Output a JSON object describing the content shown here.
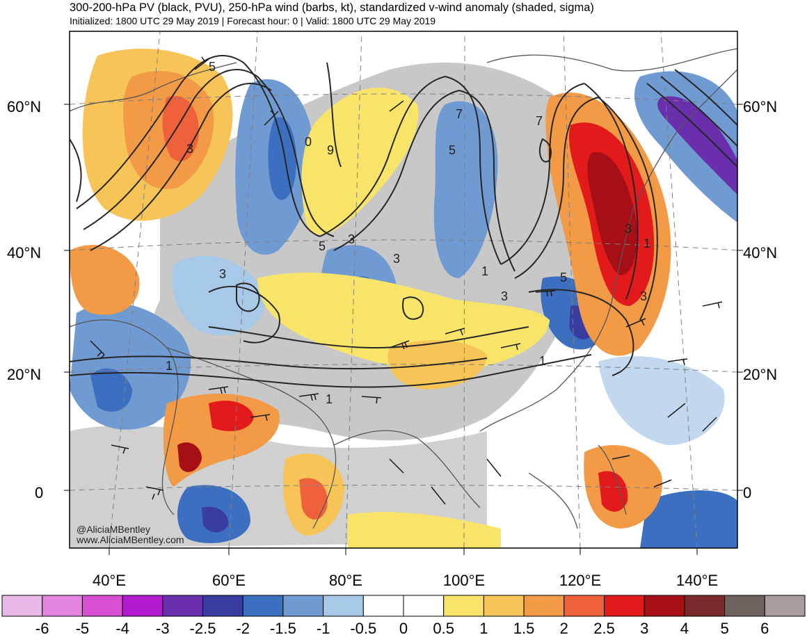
{
  "header": {
    "title": "300-200-hPa PV (black, PVU), 250-hPa wind (barbs, kt), standardized v-wind anomaly (shaded, sigma)",
    "subtitle": "Initialized: 1800 UTC 29 May 2019 | Forecast hour: 0 | Valid: 1800 UTC 29 May 2019"
  },
  "map": {
    "lat_labels": [
      "60°N",
      "40°N",
      "20°N",
      "0"
    ],
    "lon_labels": [
      "40°E",
      "60°E",
      "80°E",
      "100°E",
      "120°E",
      "140°E"
    ],
    "contour_labels": [
      "5",
      "3",
      "0",
      "9",
      "3",
      "5",
      "3",
      "3",
      "7",
      "5",
      "7",
      "3",
      "3",
      "5",
      "1",
      "3",
      "1",
      "1",
      "1",
      "1"
    ],
    "credit": [
      "@AliciaMBentley",
      "www.AliciaMBentley.com"
    ]
  },
  "colorbar": {
    "ticks": [
      "-6",
      "-5",
      "-4",
      "-3",
      "-2.5",
      "-2",
      "-1.5",
      "-1",
      "-0.5",
      "0",
      "0.5",
      "1",
      "1.5",
      "2",
      "2.5",
      "3",
      "4",
      "5",
      "6"
    ],
    "colors": [
      "#e8b8e6",
      "#e583e0",
      "#d84fd4",
      "#b21bcf",
      "#6a2fad",
      "#3a3da0",
      "#3c6fbf",
      "#6f9bd2",
      "#a8c8e8",
      "#ffffff",
      "#ffffff",
      "#f9e46a",
      "#f6c457",
      "#f29a45",
      "#ee613a",
      "#e31a1c",
      "#a50f15",
      "#7a2a2a",
      "#6e625f",
      "#a89c9c"
    ]
  },
  "styles": {
    "gray_fill": "#c8c8c8",
    "contour": "#262626",
    "coast": "#555555"
  }
}
